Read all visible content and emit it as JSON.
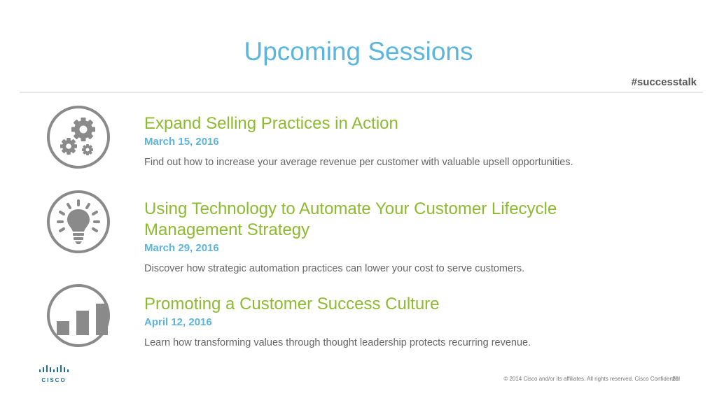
{
  "header": {
    "title": "Upcoming Sessions",
    "hashtag": "#successtalk"
  },
  "sessions": [
    {
      "icon": "gears-icon",
      "title": "Expand Selling Practices in Action",
      "date": "March 15, 2016",
      "description": "Find out how to increase your average revenue per customer with valuable upsell opportunities."
    },
    {
      "icon": "lightbulb-icon",
      "title": "Using Technology to Automate Your Customer Lifecycle Management Strategy",
      "date": "March 29, 2016",
      "description": "Discover how strategic automation practices can lower your cost to serve customers."
    },
    {
      "icon": "bar-chart-icon",
      "title": "Promoting a Customer Success Culture",
      "date": "April 12, 2016",
      "description": "Learn how transforming values through thought leadership protects recurring revenue."
    }
  ],
  "footer": {
    "logo_text": "CISCO",
    "copyright": "© 2014  Cisco and/or its affiliates. All rights reserved.   Cisco Confidential",
    "page_number": "20"
  },
  "colors": {
    "title": "#5bb5dd",
    "session_title": "#8dba2f",
    "date": "#5bb5dd",
    "icon": "#8a8a8a"
  }
}
